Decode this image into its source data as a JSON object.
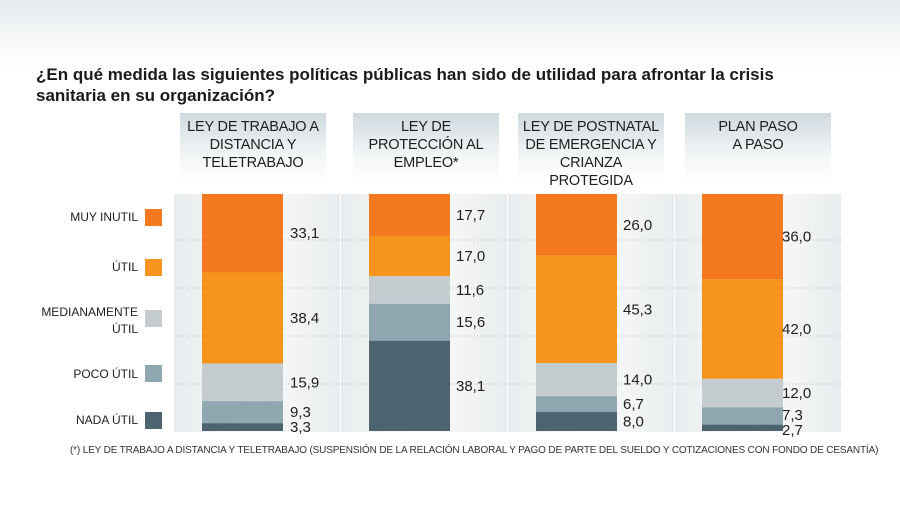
{
  "title": "¿En qué medida las siguientes políticas públicas han sido de utilidad para afrontar la crisis sanitaria en su organización?",
  "footnote": "(*) LEY DE TRABAJO A DISTANCIA Y TELETRABAJO (SUSPENSIÓN DE LA RELACIÓN LABORAL Y PAGO DE PARTE DEL SUELDO Y COTIZACIONES CON FONDO DE CESANTÍA)",
  "colors": {
    "muy_inutil": "#f47920",
    "util": "#f7941d",
    "medianamente_util": "#c5cccf",
    "poco_util": "#8ea7b1",
    "nada_util": "#4d6470"
  },
  "legend": [
    {
      "label": "MUY INUTIL",
      "color": "#f47920"
    },
    {
      "label": "ÚTIL",
      "color": "#f7941d"
    },
    {
      "label": "MEDIANAMENTE ÚTIL",
      "color": "#c5cccf"
    },
    {
      "label": "POCO ÚTIL",
      "color": "#8ea7b1"
    },
    {
      "label": "NADA ÚTIL",
      "color": "#4d6470"
    }
  ],
  "chart_data": {
    "type": "bar",
    "stacked": true,
    "stack_normalized_percent": true,
    "categories": [
      "LEY DE TRABAJO A DISTANCIA Y TELETRABAJO",
      "LEY DE PROTECCIÓN AL EMPLEO*",
      "LEY DE POSTNATAL DE EMERGENCIA Y CRIANZA PROTEGIDA",
      "PLAN PASO A PASO"
    ],
    "category_lines": [
      [
        "LEY DE TRABAJO A",
        "DISTANCIA Y",
        "TELETRABAJO"
      ],
      [
        "LEY DE",
        "PROTECCIÓN AL",
        "EMPLEO*"
      ],
      [
        "LEY DE POSTNATAL",
        "DE EMERGENCIA Y",
        "CRIANZA",
        "PROTEGIDA"
      ],
      [
        "PLAN PASO",
        "A PASO"
      ]
    ],
    "series": [
      {
        "name": "MUY INUTIL",
        "values": [
          33.1,
          17.7,
          26.0,
          36.0
        ]
      },
      {
        "name": "ÚTIL",
        "values": [
          38.4,
          17.0,
          45.3,
          42.0
        ]
      },
      {
        "name": "MEDIANAMENTE ÚTIL",
        "values": [
          15.9,
          11.6,
          14.0,
          12.0
        ]
      },
      {
        "name": "POCO ÚTIL",
        "values": [
          9.3,
          15.6,
          6.7,
          7.3
        ]
      },
      {
        "name": "NADA ÚTIL",
        "values": [
          3.3,
          38.1,
          8.0,
          2.7
        ]
      }
    ],
    "labels": [
      [
        "33,1",
        "17,7",
        "26,0",
        "36,0"
      ],
      [
        "38,4",
        "17,0",
        "45,3",
        "42,0"
      ],
      [
        "15,9",
        "11,6",
        "14,0",
        "12,0"
      ],
      [
        "9,3",
        "15,6",
        "6,7",
        "7,3"
      ],
      [
        "3,3",
        "38,1",
        "8,0",
        "2,7"
      ]
    ],
    "legend_position": "left",
    "grid": "horizontal dotted"
  }
}
